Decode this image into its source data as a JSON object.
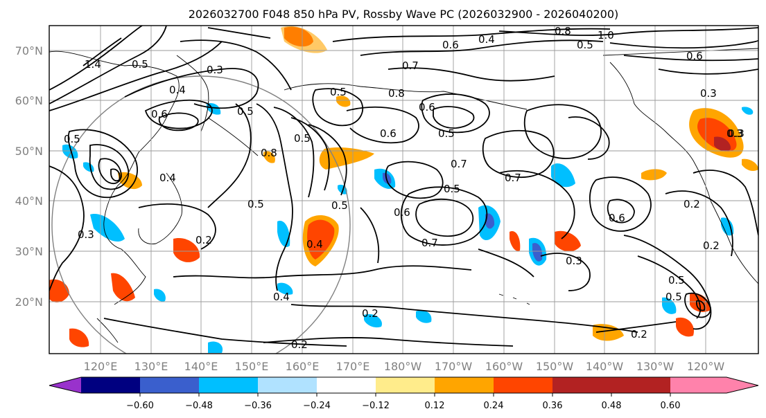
{
  "title": "2026032700 F048 850 hPa PV, Rossby Wave PC (2026032900 - 2026040200)",
  "lat_labels": [
    "70°N",
    "60°N",
    "50°N",
    "40°N",
    "30°N",
    "20°N"
  ],
  "lon_labels": [
    "120°E",
    "130°E",
    "140°E",
    "150°E",
    "160°E",
    "170°E",
    "180°W",
    "170°W",
    "160°W",
    "150°W",
    "140°W",
    "130°W",
    "120°W"
  ],
  "colorbar": {
    "colors": [
      "#9932CC",
      "#000080",
      "#3A5FCD",
      "#00BFFF",
      "#B0E2FF",
      "#FFFFFF",
      "#FFEC8B",
      "#FFA500",
      "#FF4500",
      "#B22222",
      "#FF82AB"
    ],
    "ticks": [
      "−0.60",
      "−0.48",
      "−0.36",
      "−0.24",
      "−0.12",
      "0.12",
      "0.24",
      "0.36",
      "0.48",
      "0.60"
    ]
  },
  "contour_labels": [
    "0.4",
    "0.3",
    "0.8",
    "0.6",
    "1.0",
    "0.8",
    "0.5",
    "0.3",
    "0.4",
    "1.4",
    "0.3",
    "0.5",
    "0.6",
    "0.5",
    "0.5",
    "0.5",
    "0.8",
    "0.5",
    "0.7",
    "0.6",
    "0.6",
    "0.5",
    "0.7",
    "0.5",
    "0.5",
    "0.6",
    "0.7",
    "0.7",
    "0.3",
    "0.4",
    "0.2",
    "0.3",
    "0.6",
    "0.5",
    "0.5",
    "0.4",
    "0.4",
    "0.2",
    "0.2",
    "0.2",
    "0.3",
    "0.5",
    "0.6",
    "0.2",
    "0.2"
  ]
}
